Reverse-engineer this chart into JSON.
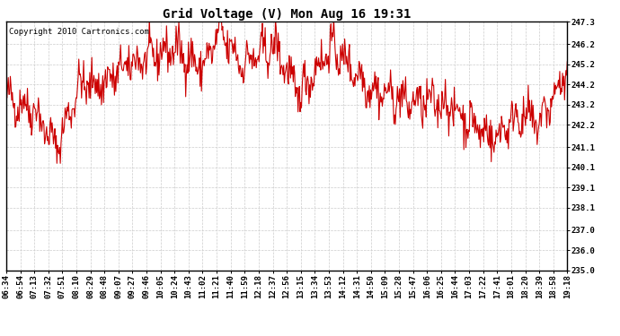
{
  "title": "Grid Voltage (V) Mon Aug 16 19:31",
  "copyright": "Copyright 2010 Cartronics.com",
  "line_color": "#cc0000",
  "background_color": "#ffffff",
  "plot_bg_color": "#ffffff",
  "grid_color": "#cccccc",
  "ylim": [
    235.0,
    247.3
  ],
  "yticks": [
    235.0,
    236.0,
    237.0,
    238.1,
    239.1,
    240.1,
    241.1,
    242.2,
    243.2,
    244.2,
    245.2,
    246.2,
    247.3
  ],
  "xtick_labels": [
    "06:34",
    "06:54",
    "07:13",
    "07:32",
    "07:51",
    "08:10",
    "08:29",
    "08:48",
    "09:07",
    "09:27",
    "09:46",
    "10:05",
    "10:24",
    "10:43",
    "11:02",
    "11:21",
    "11:40",
    "11:59",
    "12:18",
    "12:37",
    "12:56",
    "13:15",
    "13:34",
    "13:53",
    "14:12",
    "14:31",
    "14:50",
    "15:09",
    "15:28",
    "15:47",
    "16:06",
    "16:25",
    "16:44",
    "17:03",
    "17:22",
    "17:41",
    "18:01",
    "18:20",
    "18:39",
    "18:58",
    "19:18"
  ],
  "seed": 42,
  "n_points": 820,
  "line_width": 0.8,
  "title_fontsize": 10,
  "tick_fontsize": 6.5,
  "copyright_fontsize": 6.5
}
